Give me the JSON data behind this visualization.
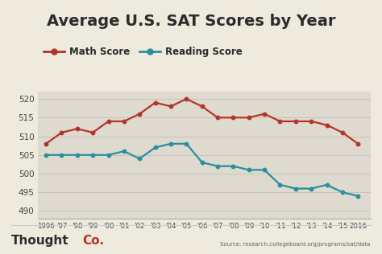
{
  "title": "Average U.S. SAT Scores by Year",
  "years": [
    1996,
    1997,
    1998,
    1999,
    2000,
    2001,
    2002,
    2003,
    2004,
    2005,
    2006,
    2007,
    2008,
    2009,
    2010,
    2011,
    2012,
    2013,
    2014,
    2015,
    2016
  ],
  "math_scores": [
    508,
    511,
    512,
    511,
    514,
    514,
    516,
    519,
    518,
    520,
    518,
    515,
    515,
    515,
    516,
    514,
    514,
    514,
    513,
    511,
    508
  ],
  "reading_scores": [
    505,
    505,
    505,
    505,
    505,
    506,
    504,
    507,
    508,
    508,
    503,
    502,
    502,
    501,
    501,
    497,
    496,
    496,
    497,
    495,
    494
  ],
  "math_color": "#b5342a",
  "reading_color": "#2a8fa0",
  "background_color": "#dedad0",
  "outer_background": "#eeeade",
  "ylim": [
    488,
    522
  ],
  "yticks": [
    490,
    495,
    500,
    505,
    510,
    515,
    520
  ],
  "title_fontsize": 14,
  "legend_math": "Math Score",
  "legend_reading": "Reading Score",
  "source_text": "Source: research.collegeboard.org/programs/sat/data",
  "branding_text_thought": "Thought",
  "branding_text_co": "Co.",
  "branding_color_thought": "#2c2c2c",
  "branding_color_co": "#b5342a",
  "year_labels": [
    "1996",
    "'97",
    "'98",
    "'99",
    "'00",
    "'01",
    "'02",
    "'03",
    "'04",
    "'05",
    "'06",
    "'07",
    "'08",
    "'09",
    "'10",
    "'11",
    "'12",
    "'13",
    "'14",
    "'15",
    "2016"
  ]
}
